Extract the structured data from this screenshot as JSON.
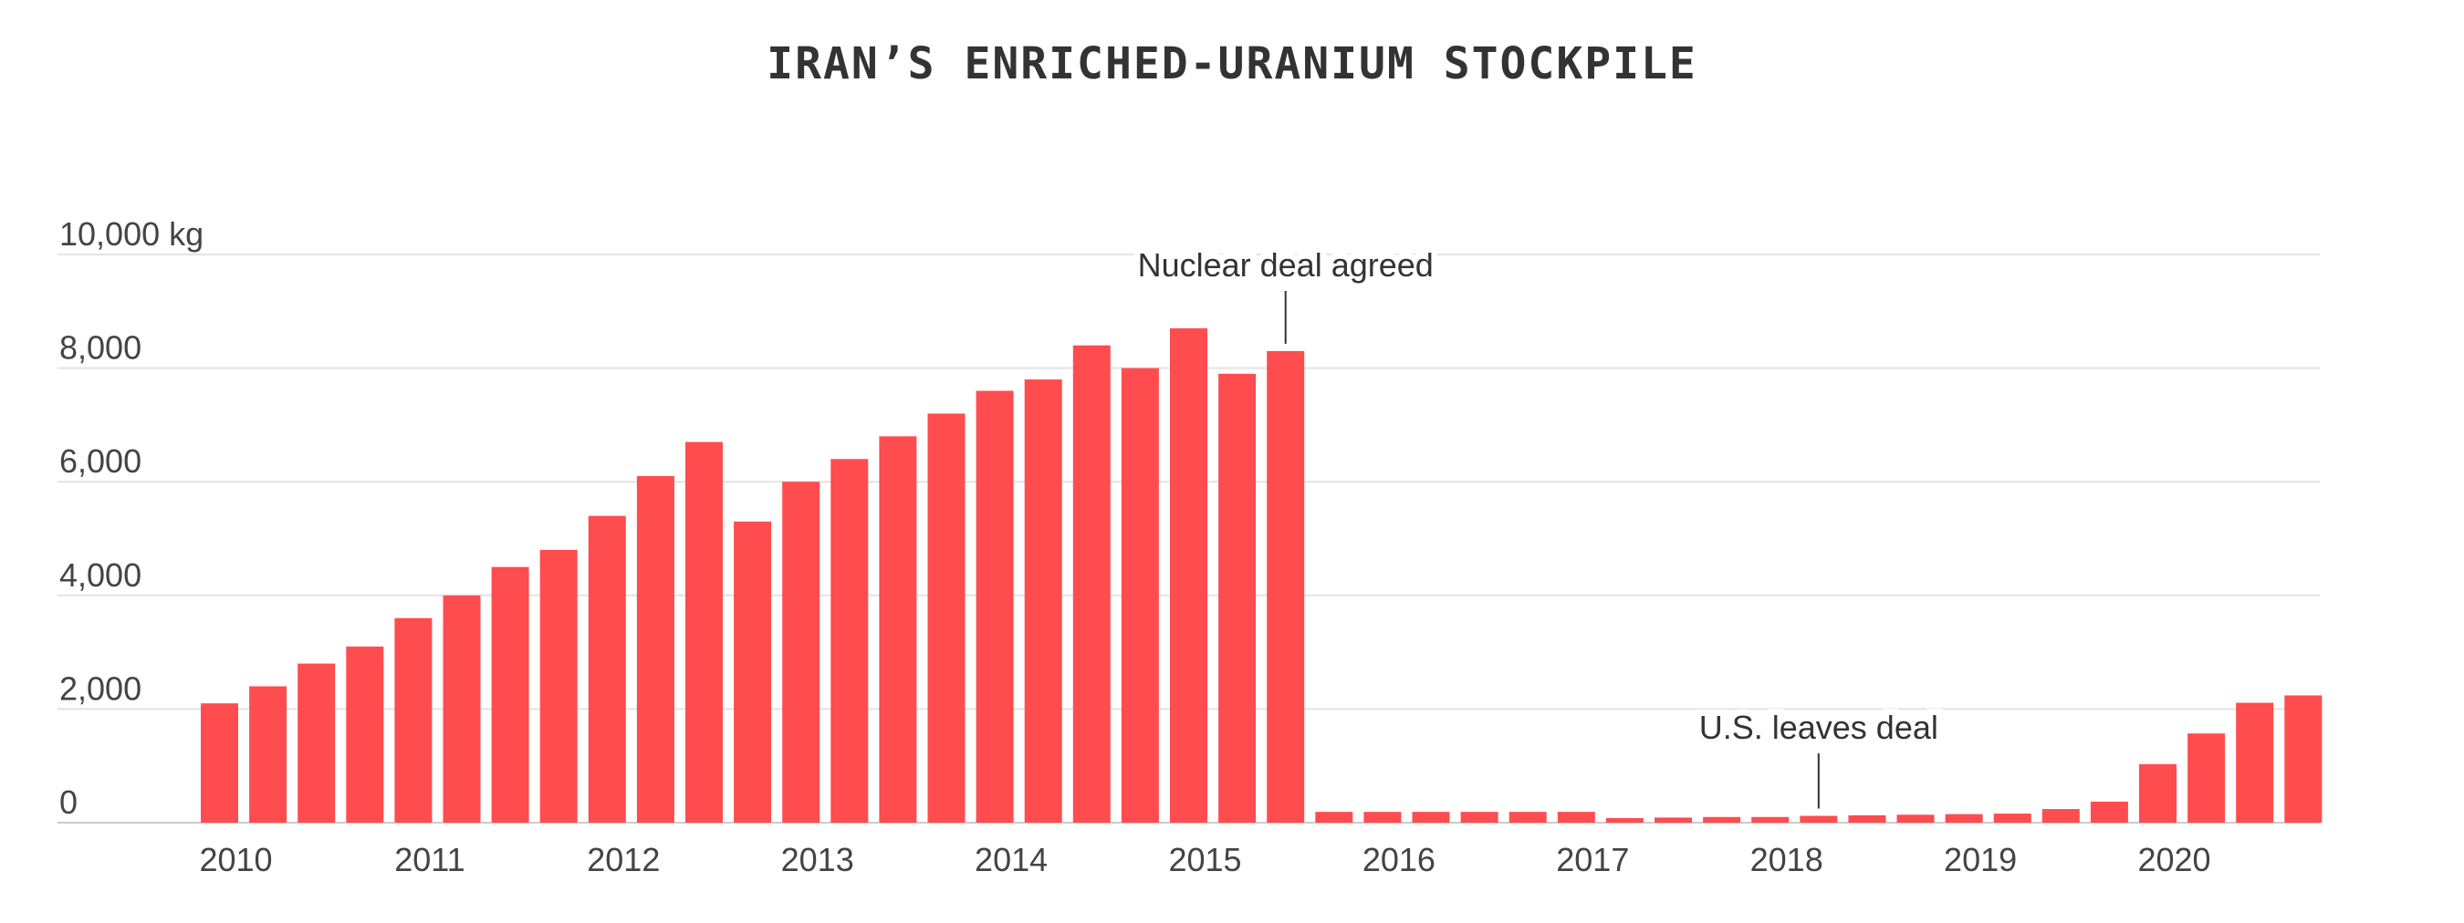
{
  "chart_data": {
    "type": "bar",
    "title": "IRAN’S ENRICHED-URANIUM STOCKPILE",
    "xlabel": "",
    "ylabel": "",
    "ylim": [
      0,
      10000
    ],
    "yticks": [
      0,
      2000,
      4000,
      6000,
      8000,
      10000
    ],
    "ytick_labels": [
      "0",
      "2,000",
      "4,000",
      "6,000",
      "8,000",
      "10,000 kg"
    ],
    "xtick_labels": [
      "2010",
      "2011",
      "2012",
      "2013",
      "2014",
      "2015",
      "2016",
      "2017",
      "2018",
      "2019",
      "2020"
    ],
    "grid": true,
    "bar_color": "#ff4c4f",
    "values": [
      2100,
      2400,
      2800,
      3100,
      3600,
      4000,
      4500,
      4800,
      5400,
      6100,
      6700,
      5300,
      6000,
      6400,
      6800,
      7200,
      7600,
      7800,
      8400,
      8000,
      8700,
      7900,
      8300,
      190,
      190,
      190,
      190,
      190,
      190,
      80,
      90,
      100,
      100,
      120,
      130,
      140,
      150,
      160,
      240,
      370,
      1030,
      1570,
      2110,
      2240
    ],
    "annotations": [
      {
        "text": "Nuclear deal agreed",
        "bar_index": 22
      },
      {
        "text": "U.S. leaves deal",
        "bar_index": 33
      }
    ]
  }
}
